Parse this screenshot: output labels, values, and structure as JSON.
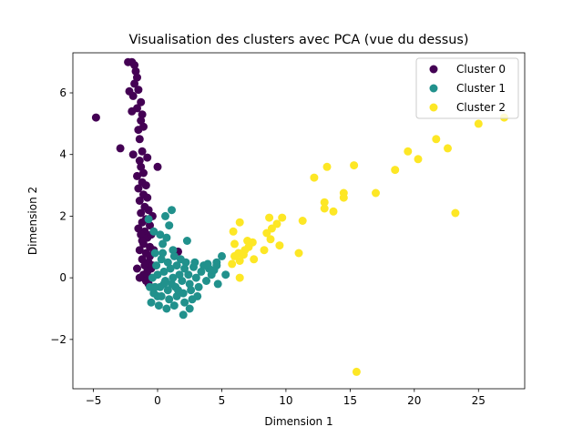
{
  "chart_data": {
    "type": "scatter",
    "title": "Visualisation des clusters avec PCA (vue du dessus)",
    "xlabel": "Dimension 1",
    "ylabel": "Dimension 2",
    "xlim": [
      -6.6,
      28.6
    ],
    "ylim": [
      -3.6,
      7.3
    ],
    "xticks": [
      -5,
      0,
      5,
      10,
      15,
      20,
      25
    ],
    "yticks": [
      -2,
      0,
      2,
      4,
      6
    ],
    "grid": false,
    "legend_position": "top-right",
    "series": [
      {
        "name": "Cluster 0",
        "color": "#440154",
        "points": [
          [
            -2.3,
            7.0
          ],
          [
            -2.0,
            7.0
          ],
          [
            -1.8,
            6.9
          ],
          [
            -1.7,
            6.7
          ],
          [
            -1.6,
            6.5
          ],
          [
            -1.8,
            6.3
          ],
          [
            -1.5,
            6.1
          ],
          [
            -2.2,
            6.05
          ],
          [
            -1.9,
            5.9
          ],
          [
            -1.3,
            5.7
          ],
          [
            -1.6,
            5.5
          ],
          [
            -2.0,
            5.4
          ],
          [
            -1.2,
            5.3
          ],
          [
            -1.3,
            5.1
          ],
          [
            -1.1,
            4.9
          ],
          [
            -1.5,
            4.8
          ],
          [
            -1.4,
            4.5
          ],
          [
            -4.8,
            5.2
          ],
          [
            -2.9,
            4.2
          ],
          [
            -0.8,
            3.9
          ],
          [
            -1.2,
            4.1
          ],
          [
            -1.9,
            4.0
          ],
          [
            -1.4,
            3.8
          ],
          [
            -1.3,
            3.6
          ],
          [
            -1.1,
            3.4
          ],
          [
            0.0,
            3.6
          ],
          [
            -1.6,
            3.3
          ],
          [
            -1.2,
            3.1
          ],
          [
            -0.9,
            3.0
          ],
          [
            -1.5,
            2.9
          ],
          [
            -1.1,
            2.7
          ],
          [
            -0.8,
            2.6
          ],
          [
            -1.4,
            2.5
          ],
          [
            -1.0,
            2.3
          ],
          [
            -0.7,
            2.2
          ],
          [
            -1.3,
            2.1
          ],
          [
            -0.9,
            1.9
          ],
          [
            -1.2,
            1.8
          ],
          [
            -0.6,
            1.7
          ],
          [
            -1.0,
            1.5
          ],
          [
            -1.3,
            1.4
          ],
          [
            -0.8,
            1.3
          ],
          [
            -1.1,
            1.1
          ],
          [
            -0.6,
            1.0
          ],
          [
            -1.4,
            0.9
          ],
          [
            -0.9,
            0.8
          ],
          [
            -1.2,
            0.6
          ],
          [
            -0.7,
            0.5
          ],
          [
            -1.0,
            0.4
          ],
          [
            -0.5,
            0.3
          ],
          [
            -0.8,
            0.2
          ],
          [
            -1.1,
            0.1
          ],
          [
            -0.6,
            0.0
          ],
          [
            -0.9,
            -0.1
          ],
          [
            -0.7,
            -0.2
          ],
          [
            -1.2,
            1.2
          ],
          [
            -0.5,
            1.4
          ],
          [
            -1.5,
            1.6
          ],
          [
            -0.4,
            2.0
          ],
          [
            1.6,
            0.85
          ],
          [
            -0.6,
            0.7
          ],
          [
            -0.3,
            0.9
          ],
          [
            -1.6,
            0.3
          ],
          [
            -1.4,
            0.0
          ],
          [
            -0.4,
            0.4
          ]
        ]
      },
      {
        "name": "Cluster 1",
        "color": "#21918c",
        "points": [
          [
            1.1,
            2.2
          ],
          [
            0.6,
            2.0
          ],
          [
            -0.7,
            1.9
          ],
          [
            0.9,
            1.7
          ],
          [
            -0.3,
            1.5
          ],
          [
            0.2,
            1.4
          ],
          [
            2.3,
            1.2
          ],
          [
            0.4,
            1.1
          ],
          [
            1.2,
            0.9
          ],
          [
            -0.2,
            0.8
          ],
          [
            0.3,
            0.6
          ],
          [
            0.8,
            0.5
          ],
          [
            1.5,
            0.4
          ],
          [
            2.1,
            0.3
          ],
          [
            2.8,
            0.35
          ],
          [
            3.4,
            0.2
          ],
          [
            4.0,
            0.3
          ],
          [
            4.6,
            0.5
          ],
          [
            5.0,
            0.7
          ],
          [
            5.3,
            0.1
          ],
          [
            4.6,
            0.4
          ],
          [
            3.8,
            -0.1
          ],
          [
            3.0,
            0.0
          ],
          [
            2.5,
            -0.2
          ],
          [
            1.9,
            -0.1
          ],
          [
            1.2,
            0.0
          ],
          [
            0.6,
            -0.1
          ],
          [
            0.0,
            0.1
          ],
          [
            -0.4,
            0.0
          ],
          [
            0.2,
            -0.3
          ],
          [
            0.8,
            -0.4
          ],
          [
            1.4,
            -0.3
          ],
          [
            2.0,
            -0.5
          ],
          [
            2.6,
            -0.4
          ],
          [
            3.2,
            -0.3
          ],
          [
            4.7,
            -0.2
          ],
          [
            -0.3,
            -0.5
          ],
          [
            0.3,
            -0.6
          ],
          [
            0.9,
            -0.7
          ],
          [
            1.5,
            -0.6
          ],
          [
            2.1,
            -0.8
          ],
          [
            2.7,
            -0.7
          ],
          [
            -0.5,
            -0.8
          ],
          [
            0.1,
            -0.9
          ],
          [
            0.7,
            -1.0
          ],
          [
            1.3,
            -0.9
          ],
          [
            2.0,
            -1.2
          ],
          [
            2.5,
            -1.0
          ],
          [
            -0.2,
            -0.3
          ],
          [
            0.5,
            0.2
          ],
          [
            1.0,
            0.3
          ],
          [
            1.7,
            0.1
          ],
          [
            2.4,
            0.1
          ],
          [
            3.6,
            0.4
          ],
          [
            4.2,
            0.1
          ],
          [
            0.4,
            0.8
          ],
          [
            1.8,
            0.6
          ],
          [
            -0.6,
            -0.3
          ],
          [
            0.0,
            -0.6
          ],
          [
            1.1,
            -0.2
          ],
          [
            3.1,
            -0.6
          ],
          [
            2.2,
            0.5
          ],
          [
            0.7,
            1.3
          ],
          [
            1.3,
            0.7
          ],
          [
            -0.1,
            0.4
          ],
          [
            3.9,
            0.45
          ],
          [
            4.4,
            0.25
          ],
          [
            2.9,
            0.5
          ],
          [
            1.6,
            -0.4
          ],
          [
            0.5,
            -0.2
          ]
        ]
      },
      {
        "name": "Cluster 2",
        "color": "#fde725",
        "points": [
          [
            27.0,
            5.2
          ],
          [
            25.0,
            5.0
          ],
          [
            21.7,
            4.5
          ],
          [
            22.6,
            4.2
          ],
          [
            19.5,
            4.1
          ],
          [
            20.3,
            3.85
          ],
          [
            13.2,
            3.6
          ],
          [
            15.3,
            3.65
          ],
          [
            18.5,
            3.5
          ],
          [
            12.2,
            3.25
          ],
          [
            17.0,
            2.75
          ],
          [
            14.5,
            2.75
          ],
          [
            14.5,
            2.6
          ],
          [
            13.0,
            2.45
          ],
          [
            13.0,
            2.25
          ],
          [
            13.7,
            2.15
          ],
          [
            23.2,
            2.1
          ],
          [
            9.7,
            1.95
          ],
          [
            8.7,
            1.95
          ],
          [
            11.3,
            1.85
          ],
          [
            9.3,
            1.75
          ],
          [
            6.4,
            1.8
          ],
          [
            8.9,
            1.6
          ],
          [
            8.5,
            1.45
          ],
          [
            5.9,
            1.5
          ],
          [
            7.0,
            1.2
          ],
          [
            8.8,
            1.25
          ],
          [
            7.4,
            1.15
          ],
          [
            6.0,
            1.1
          ],
          [
            9.5,
            1.05
          ],
          [
            7.1,
            1.0
          ],
          [
            6.8,
            0.9
          ],
          [
            8.3,
            0.9
          ],
          [
            6.3,
            0.8
          ],
          [
            6.7,
            0.75
          ],
          [
            6.0,
            0.7
          ],
          [
            11.0,
            0.8
          ],
          [
            7.5,
            0.6
          ],
          [
            6.4,
            0.55
          ],
          [
            5.8,
            0.45
          ],
          [
            6.4,
            0.0
          ],
          [
            15.5,
            -3.05
          ]
        ]
      }
    ]
  }
}
